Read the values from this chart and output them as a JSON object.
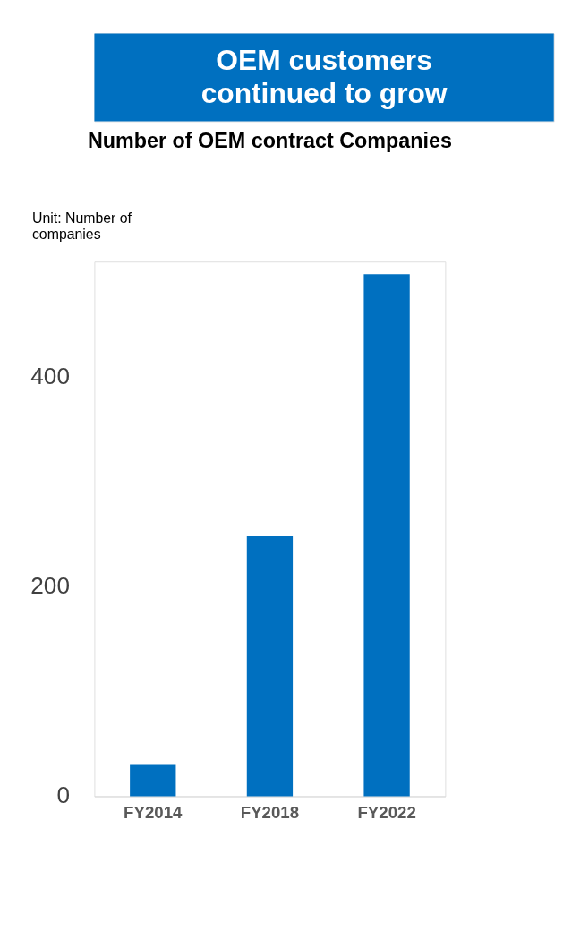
{
  "chart_data": {
    "type": "bar",
    "title": "OEM customers continued to grow",
    "subtitle": "Number of OEM contract Companies",
    "ylabel": "Unit: Number of companies",
    "categories": [
      "FY2014",
      "FY2018",
      "FY2022"
    ],
    "values": [
      30,
      248,
      498
    ],
    "color": "#0070c0",
    "ylim": [
      0,
      510
    ],
    "yticks": [
      0,
      200,
      400
    ],
    "grid": false
  }
}
